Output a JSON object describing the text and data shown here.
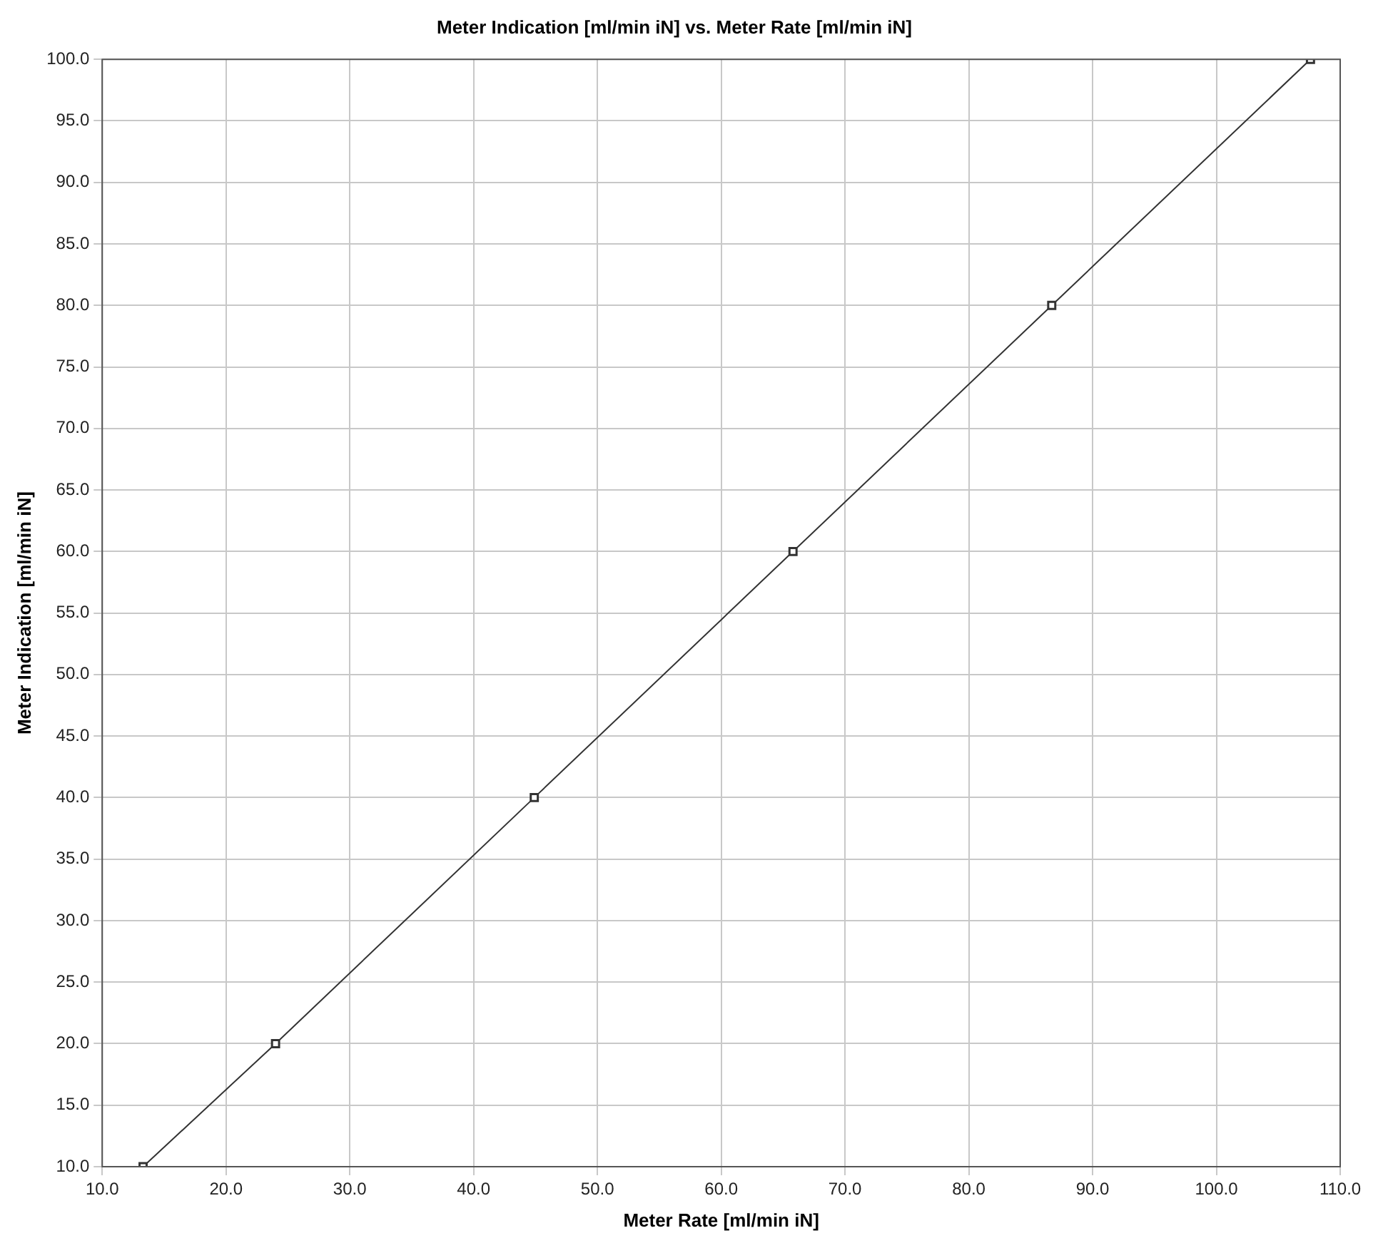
{
  "chart_data": {
    "type": "line",
    "title": "Meter Indication [ml/min iN] vs. Meter Rate [ml/min iN]",
    "xlabel": "Meter Rate [ml/min iN]",
    "ylabel": "Meter Indication [ml/min iN]",
    "x": [
      13.3,
      24.0,
      44.9,
      65.8,
      86.7,
      107.6
    ],
    "series": [
      {
        "color": "#333333",
        "values": [
          10,
          20,
          40,
          60,
          80,
          100
        ]
      }
    ],
    "xlim": [
      10,
      110
    ],
    "xticks": [
      {
        "value": 10,
        "label": "10.0"
      },
      {
        "value": 20,
        "label": "20.0"
      },
      {
        "value": 30,
        "label": "30.0"
      },
      {
        "value": 40,
        "label": "40.0"
      },
      {
        "value": 50,
        "label": "50.0"
      },
      {
        "value": 60,
        "label": "60.0"
      },
      {
        "value": 70,
        "label": "70.0"
      },
      {
        "value": 80,
        "label": "80.0"
      },
      {
        "value": 90,
        "label": "90.0"
      },
      {
        "value": 100,
        "label": "100.0"
      },
      {
        "value": 110,
        "label": "110.0"
      }
    ],
    "ylim": [
      10,
      100
    ],
    "yticks": [
      {
        "value": 10,
        "label": "10.0"
      },
      {
        "value": 15,
        "label": "15.0"
      },
      {
        "value": 20,
        "label": "20.0"
      },
      {
        "value": 25,
        "label": "25.0"
      },
      {
        "value": 30,
        "label": "30.0"
      },
      {
        "value": 35,
        "label": "35.0"
      },
      {
        "value": 40,
        "label": "40.0"
      },
      {
        "value": 45,
        "label": "45.0"
      },
      {
        "value": 50,
        "label": "50.0"
      },
      {
        "value": 55,
        "label": "55.0"
      },
      {
        "value": 60,
        "label": "60.0"
      },
      {
        "value": 65,
        "label": "65.0"
      },
      {
        "value": 70,
        "label": "70.0"
      },
      {
        "value": 75,
        "label": "75.0"
      },
      {
        "value": 80,
        "label": "80.0"
      },
      {
        "value": 85,
        "label": "85.0"
      },
      {
        "value": 90,
        "label": "90.0"
      },
      {
        "value": 95,
        "label": "95.0"
      },
      {
        "value": 100,
        "label": "100.0"
      }
    ],
    "grid": true,
    "marker": "square",
    "line_style": "solid",
    "legend": false
  }
}
